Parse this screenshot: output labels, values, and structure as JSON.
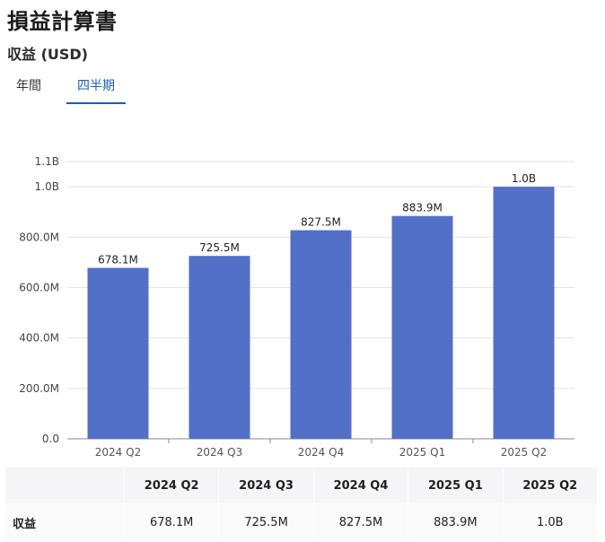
{
  "header": {
    "title": "損益計算書",
    "subtitle": "収益 (USD)"
  },
  "tabs": [
    {
      "label": "年間",
      "active": false
    },
    {
      "label": "四半期",
      "active": true
    }
  ],
  "colors": {
    "bar": "#5270c8",
    "active_tab": "#1a5fb4",
    "gridline": "#e3e3e3"
  },
  "chart_data": {
    "type": "bar",
    "categories": [
      "2024 Q2",
      "2024 Q3",
      "2024 Q4",
      "2025 Q1",
      "2025 Q2"
    ],
    "values": [
      678.1,
      725.5,
      827.5,
      883.9,
      1000
    ],
    "value_unit": "M",
    "data_labels": [
      "678.1M",
      "725.5M",
      "827.5M",
      "883.9M",
      "1.0B"
    ],
    "y_ticks": [
      {
        "value": 0,
        "label": "0.0"
      },
      {
        "value": 200,
        "label": "200.0M"
      },
      {
        "value": 400,
        "label": "400.0M"
      },
      {
        "value": 600,
        "label": "600.0M"
      },
      {
        "value": 800,
        "label": "800.0M"
      },
      {
        "value": 1000,
        "label": "1.0B"
      },
      {
        "value": 1100,
        "label": "1.1B"
      }
    ],
    "ylim": [
      0,
      1100
    ],
    "grid": true,
    "legend": "none"
  },
  "table": {
    "row_label": "収益",
    "headers": [
      "2024 Q2",
      "2024 Q3",
      "2024 Q4",
      "2025 Q1",
      "2025 Q2"
    ],
    "values": [
      "678.1M",
      "725.5M",
      "827.5M",
      "883.9M",
      "1.0B"
    ]
  }
}
